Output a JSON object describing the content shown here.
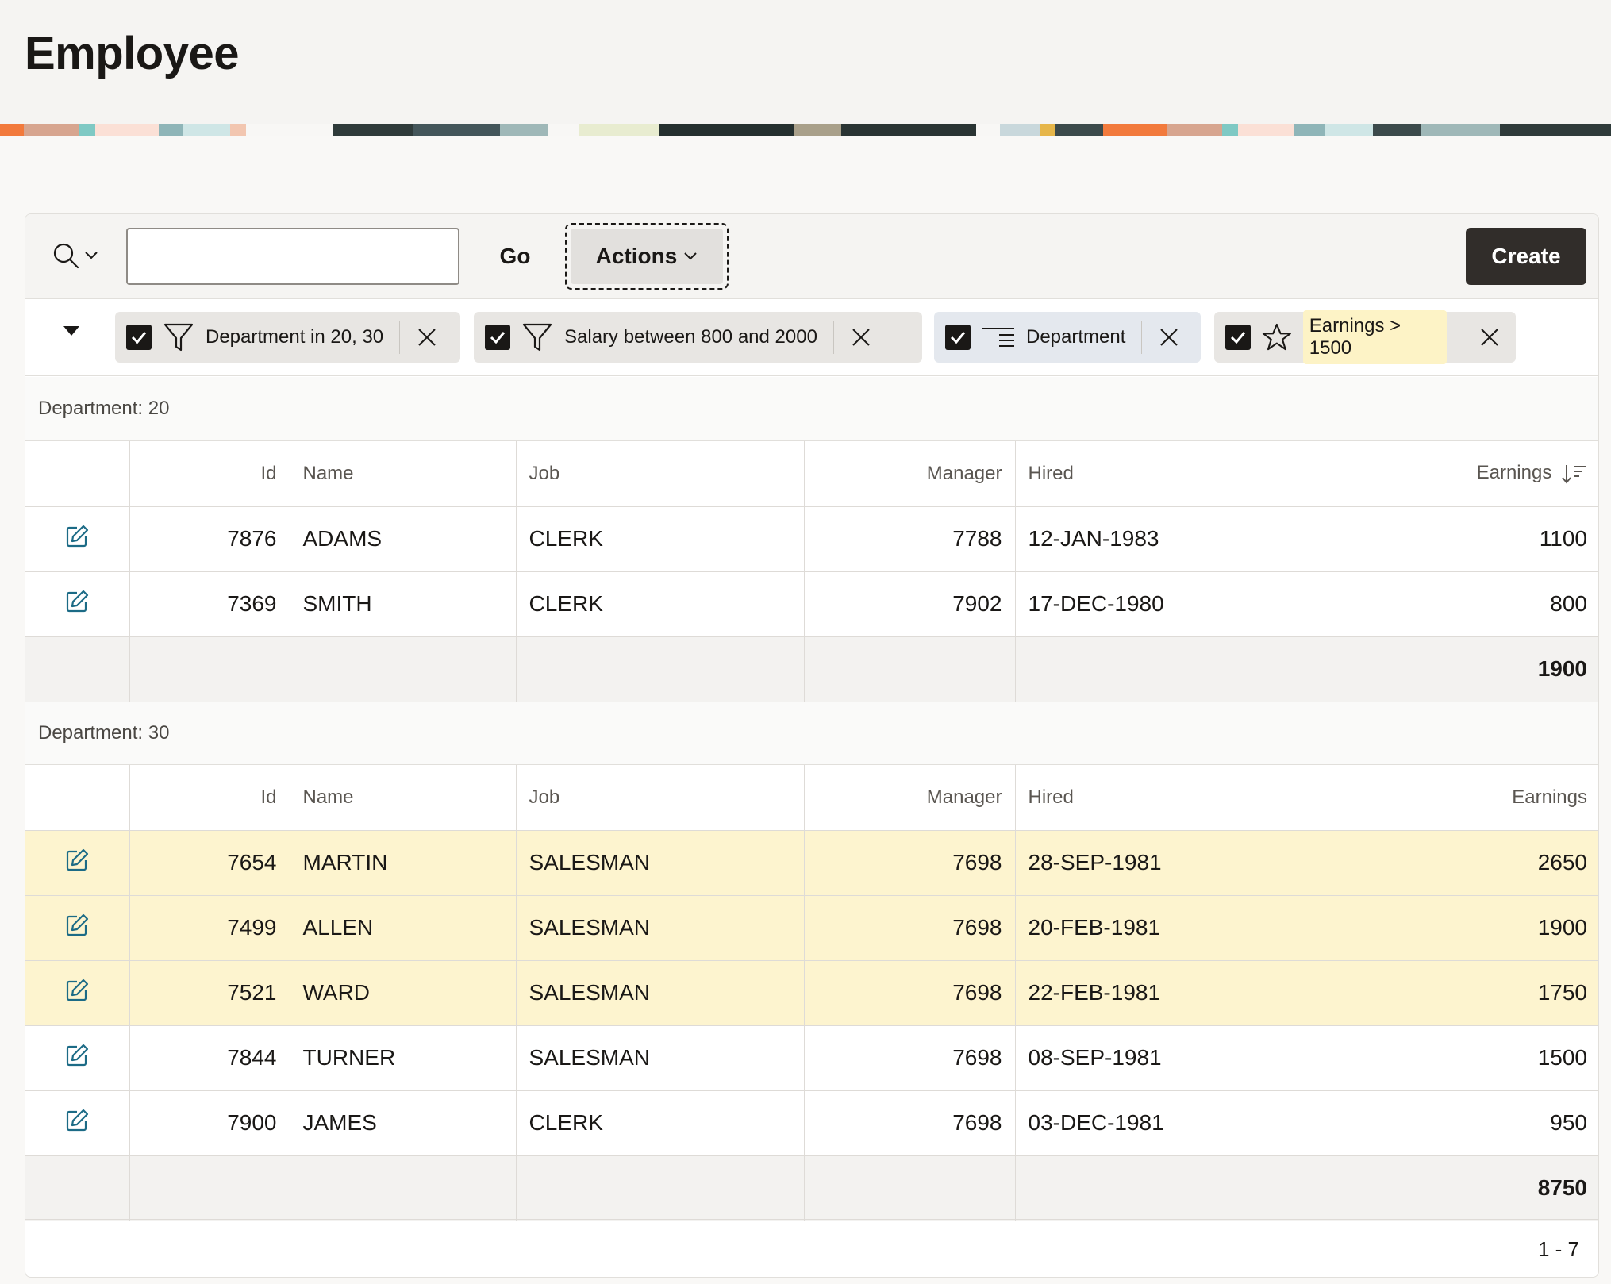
{
  "page": {
    "title": "Employee"
  },
  "toolbar": {
    "search_value": "",
    "go_label": "Go",
    "actions_label": "Actions",
    "create_label": "Create"
  },
  "filters": [
    {
      "label": "Department in 20, 30",
      "type": "filter",
      "icon": "funnel-icon",
      "enabled": true,
      "highlighted": false
    },
    {
      "label": "Salary between 800 and 2000",
      "type": "filter",
      "icon": "funnel-icon",
      "enabled": true,
      "highlighted": false
    },
    {
      "label": "Department",
      "type": "control-break",
      "icon": "control-break-icon",
      "enabled": true,
      "highlighted": false
    },
    {
      "label": "Earnings > 1500",
      "type": "highlight",
      "icon": "star-icon",
      "enabled": true,
      "highlighted": true
    }
  ],
  "columns": {
    "id": "Id",
    "name": "Name",
    "job": "Job",
    "manager": "Manager",
    "hired": "Hired",
    "earnings": "Earnings"
  },
  "groups": [
    {
      "label": "Department: 20",
      "rows": [
        {
          "id": "7876",
          "name": "ADAMS",
          "job": "CLERK",
          "manager": "7788",
          "hired": "12-JAN-1983",
          "earnings": "1100",
          "highlight": false
        },
        {
          "id": "7369",
          "name": "SMITH",
          "job": "CLERK",
          "manager": "7902",
          "hired": "17-DEC-1980",
          "earnings": "800",
          "highlight": false
        }
      ],
      "total": "1900"
    },
    {
      "label": "Department: 30",
      "rows": [
        {
          "id": "7654",
          "name": "MARTIN",
          "job": "SALESMAN",
          "manager": "7698",
          "hired": "28-SEP-1981",
          "earnings": "2650",
          "highlight": true
        },
        {
          "id": "7499",
          "name": "ALLEN",
          "job": "SALESMAN",
          "manager": "7698",
          "hired": "20-FEB-1981",
          "earnings": "1900",
          "highlight": true
        },
        {
          "id": "7521",
          "name": "WARD",
          "job": "SALESMAN",
          "manager": "7698",
          "hired": "22-FEB-1981",
          "earnings": "1750",
          "highlight": true
        },
        {
          "id": "7844",
          "name": "TURNER",
          "job": "SALESMAN",
          "manager": "7698",
          "hired": "08-SEP-1981",
          "earnings": "1500",
          "highlight": false
        },
        {
          "id": "7900",
          "name": "JAMES",
          "job": "CLERK",
          "manager": "7698",
          "hired": "03-DEC-1981",
          "earnings": "950",
          "highlight": false
        }
      ],
      "total": "8750"
    }
  ],
  "pagination": {
    "range": "1 - 7"
  },
  "colors": {
    "highlight_row": "#fdf4cf",
    "create_button": "#312d2a",
    "edit_icon": "#1c6b86"
  }
}
